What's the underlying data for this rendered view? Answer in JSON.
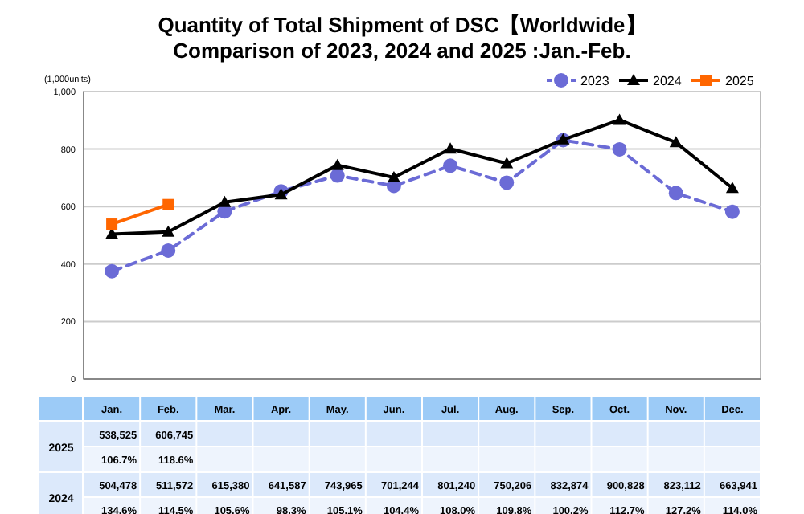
{
  "chart_data": {
    "type": "line",
    "title": "Quantity of Total Shipment of DSC【Worldwide】\nComparison of 2023, 2024 and 2025 :Jan.-Feb.",
    "ylabel": "(1,000units)",
    "categories": [
      "Jan.",
      "Feb.",
      "Mar.",
      "Apr.",
      "May.",
      "Jun.",
      "Jul.",
      "Aug.",
      "Sep.",
      "Oct.",
      "Nov.",
      "Dec."
    ],
    "series": [
      {
        "name": "2023",
        "color": "#6b6bd6",
        "marker": "circle",
        "line_style": "dashed",
        "values": [
          375,
          447,
          583,
          653,
          708,
          672,
          742,
          683,
          831,
          799,
          647,
          582
        ]
      },
      {
        "name": "2024",
        "color": "#000000",
        "marker": "triangle",
        "line_style": "solid",
        "values": [
          504,
          512,
          615,
          642,
          744,
          701,
          801,
          750,
          833,
          901,
          823,
          664
        ]
      },
      {
        "name": "2025",
        "color": "#ff6600",
        "marker": "square",
        "line_style": "solid",
        "values": [
          539,
          607,
          null,
          null,
          null,
          null,
          null,
          null,
          null,
          null,
          null,
          null
        ]
      }
    ],
    "annotations": [
      "538,525",
      "606,745",
      "106.7%",
      "118.6%",
      "504,478",
      "511,572",
      "615,380",
      "641,587",
      "743,965",
      "701,244",
      "801,240",
      "750,206",
      "832,874",
      "900,828",
      "823,112",
      "663,941",
      "134.6%",
      "114.5%",
      "105.6%",
      "98.3%",
      "105.1%",
      "104.4%",
      "108.0%",
      "109.8%",
      "100.2%",
      "112.7%",
      "127.2%",
      "114.0%"
    ],
    "ylim": [
      0,
      1000
    ],
    "yticks": [
      0,
      200,
      400,
      600,
      800,
      {
        "value": 1000,
        "label": "1,000"
      }
    ],
    "grid": "y",
    "legend": "top right"
  }
}
